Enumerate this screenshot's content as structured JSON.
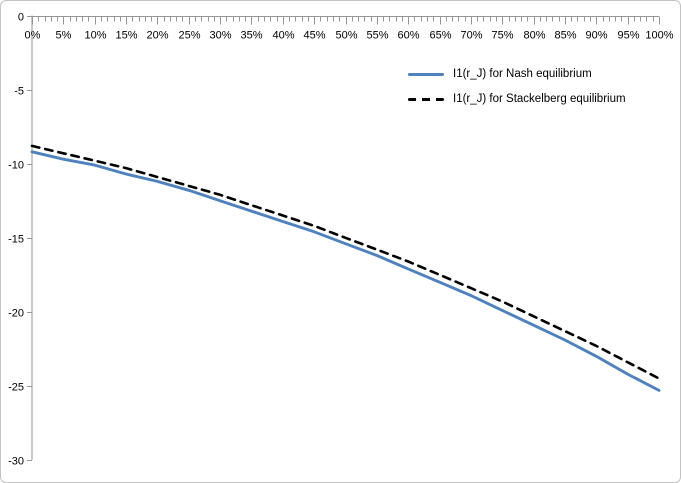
{
  "chart_data": {
    "type": "line",
    "title": "",
    "xlabel": "",
    "ylabel": "",
    "x_tick_labels": [
      "0%",
      "5%",
      "10%",
      "15%",
      "20%",
      "25%",
      "30%",
      "35%",
      "40%",
      "45%",
      "50%",
      "55%",
      "60%",
      "65%",
      "70%",
      "75%",
      "80%",
      "85%",
      "90%",
      "95%",
      "100%"
    ],
    "x_minor_ticks_per_major": 5,
    "y_ticks": [
      0,
      -5,
      -10,
      -15,
      -20,
      -25,
      -30
    ],
    "ylim": [
      -30,
      0
    ],
    "xlim_percent": [
      0,
      100
    ],
    "grid": false,
    "legend_position": "top-right-inside",
    "axis_color": "#969696",
    "label_color": "#000000",
    "background_color": "#FFFFFF",
    "border_color": "#C3C3C3",
    "series": [
      {
        "name": "I1(r_J) for Nash equilibrium",
        "color": "#4F81BD",
        "style": "solid",
        "values": [
          -9.2,
          -9.7,
          -10.1,
          -10.7,
          -11.2,
          -11.8,
          -12.5,
          -13.2,
          -13.9,
          -14.6,
          -15.4,
          -16.2,
          -17.1,
          -18.0,
          -18.9,
          -19.9,
          -20.9,
          -21.9,
          -23.0,
          -24.2,
          -25.3
        ]
      },
      {
        "name": "I1(r_J) for Stackelberg equilibrium",
        "color": "#000000",
        "style": "dashed",
        "values": [
          -8.8,
          -9.3,
          -9.8,
          -10.3,
          -10.9,
          -11.5,
          -12.1,
          -12.8,
          -13.5,
          -14.2,
          -15.0,
          -15.8,
          -16.6,
          -17.5,
          -18.4,
          -19.3,
          -20.3,
          -21.3,
          -22.3,
          -23.4,
          -24.5
        ]
      }
    ]
  }
}
